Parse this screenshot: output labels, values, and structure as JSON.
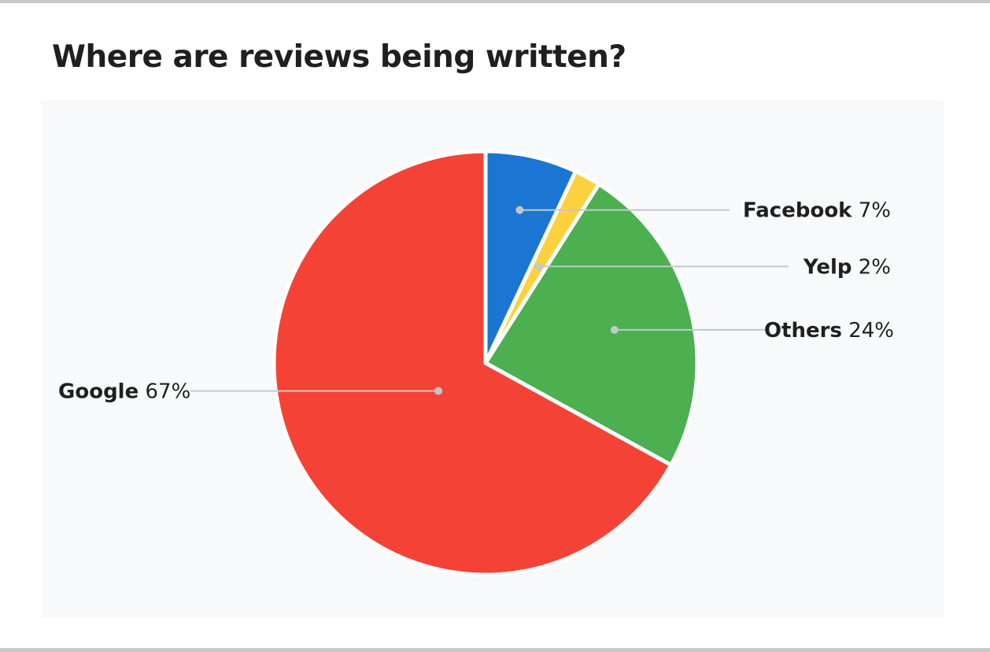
{
  "title": "Where are reviews being written?",
  "chart_data": {
    "type": "pie",
    "title": "Where are reviews being written?",
    "slices": [
      {
        "label": "Facebook",
        "value": 7,
        "display": "7%",
        "color": "#1a76d2"
      },
      {
        "label": "Yelp",
        "value": 2,
        "display": "2%",
        "color": "#fdd13d"
      },
      {
        "label": "Others",
        "value": 24,
        "display": "24%",
        "color": "#4caf50"
      },
      {
        "label": "Google",
        "value": 67,
        "display": "67%",
        "color": "#f44336"
      }
    ],
    "start_angle": "12 o'clock, clockwise",
    "labels": "outside with leader lines",
    "legend": "none",
    "background_color": "#f8f9fa"
  }
}
